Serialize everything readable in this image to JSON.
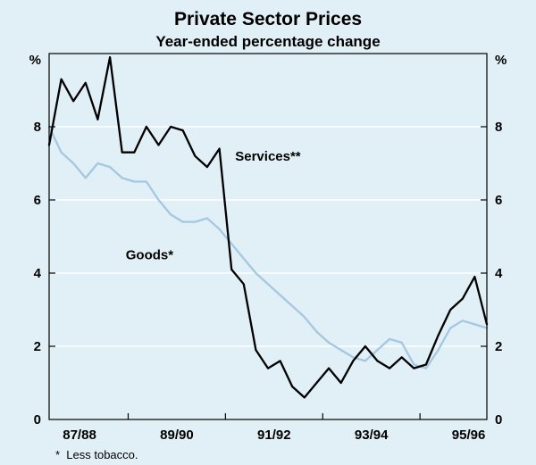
{
  "title": "Private Sector Prices",
  "subtitle": "Year-ended percentage change",
  "footnote": "*  Less tobacco.",
  "colors": {
    "background": "#e1eff6",
    "grid": "#ffffff",
    "frame": "#000000",
    "services_line": "#000000",
    "goods_line": "#a4c8e1"
  },
  "chart_data": {
    "type": "line",
    "title": "Private Sector Prices",
    "subtitle": "Year-ended percentage change",
    "unit_label": "%",
    "ylim": [
      0,
      10
    ],
    "yticks": [
      0,
      2,
      4,
      6,
      8
    ],
    "grid": "horizontal-white-gridlines",
    "legend_position": "inline-annotations",
    "x_tick_labels": [
      "87/88",
      "89/90",
      "91/92",
      "93/94",
      "95/96"
    ],
    "x_tick_label_positions": [
      2.5,
      10.5,
      18.5,
      26.5,
      34.5
    ],
    "x_minor_tick_positions": [
      6.5,
      14.5,
      22.5,
      30.5
    ],
    "n_points": 37,
    "series": [
      {
        "name": "Goods*",
        "color": "#a4c8e1",
        "values": [
          8.0,
          7.3,
          7.0,
          6.6,
          7.0,
          6.9,
          6.6,
          6.5,
          6.5,
          6.0,
          5.6,
          5.4,
          5.4,
          5.5,
          5.2,
          4.8,
          4.4,
          4.0,
          3.7,
          3.4,
          3.1,
          2.8,
          2.4,
          2.1,
          1.9,
          1.7,
          1.6,
          1.9,
          2.2,
          2.1,
          1.5,
          1.4,
          1.9,
          2.5,
          2.7,
          2.6,
          2.5
        ]
      },
      {
        "name": "Services**",
        "color": "#000000",
        "values": [
          7.5,
          9.3,
          8.7,
          9.2,
          8.2,
          9.9,
          7.3,
          7.3,
          8.0,
          7.5,
          8.0,
          7.9,
          7.2,
          6.9,
          7.4,
          4.1,
          3.7,
          1.9,
          1.4,
          1.6,
          0.9,
          0.6,
          1.0,
          1.4,
          1.0,
          1.6,
          2.0,
          1.6,
          1.4,
          1.7,
          1.4,
          1.5,
          2.3,
          3.0,
          3.3,
          3.9,
          2.6
        ]
      }
    ],
    "annotations": [
      {
        "text": "Services**",
        "x_index": 15.3,
        "value": 7.2
      },
      {
        "text": "Goods*",
        "x_index": 6.3,
        "value": 4.5
      }
    ],
    "footnote": "*  Less tobacco."
  }
}
